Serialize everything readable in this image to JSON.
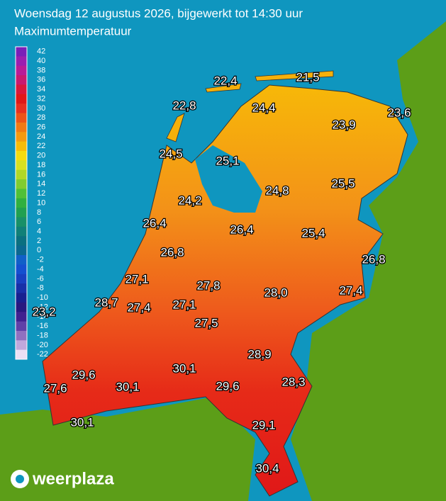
{
  "header": {
    "title": "Woensdag 12 augustus 2026, bijgewerkt tot 14:30 uur",
    "subtitle": "Maximumtemperatuur"
  },
  "scale": [
    {
      "value": 42,
      "color": "#7a1fb8"
    },
    {
      "value": 40,
      "color": "#9b1fb0"
    },
    {
      "value": 38,
      "color": "#b81c98"
    },
    {
      "value": 36,
      "color": "#c81a70"
    },
    {
      "value": 34,
      "color": "#d8183c"
    },
    {
      "value": 32,
      "color": "#e01818"
    },
    {
      "value": 30,
      "color": "#e83020"
    },
    {
      "value": 28,
      "color": "#ee5418"
    },
    {
      "value": 26,
      "color": "#f27a14"
    },
    {
      "value": 24,
      "color": "#f59a10"
    },
    {
      "value": 22,
      "color": "#f8bc08"
    },
    {
      "value": 20,
      "color": "#f5dc10"
    },
    {
      "value": 18,
      "color": "#d8e020"
    },
    {
      "value": 16,
      "color": "#b0d828"
    },
    {
      "value": 14,
      "color": "#80cc30"
    },
    {
      "value": 12,
      "color": "#50c038"
    },
    {
      "value": 10,
      "color": "#30b040"
    },
    {
      "value": 8,
      "color": "#20a050"
    },
    {
      "value": 6,
      "color": "#189068"
    },
    {
      "value": 4,
      "color": "#108078"
    },
    {
      "value": 2,
      "color": "#0a7080"
    },
    {
      "value": 0,
      "color": "#0a6890"
    },
    {
      "value": -2,
      "color": "#1060c8"
    },
    {
      "value": -4,
      "color": "#1450d0"
    },
    {
      "value": -6,
      "color": "#1840c0"
    },
    {
      "value": -8,
      "color": "#1830a8"
    },
    {
      "value": -10,
      "color": "#182090"
    },
    {
      "value": -12,
      "color": "#281880"
    },
    {
      "value": -14,
      "color": "#402090"
    },
    {
      "value": -16,
      "color": "#6040a8"
    },
    {
      "value": -18,
      "color": "#9070c0"
    },
    {
      "value": -20,
      "color": "#c0a8dc"
    },
    {
      "value": -22,
      "color": "#ece0f4"
    }
  ],
  "temperatures": [
    "22,4",
    "21,5",
    "22,8",
    "24,4",
    "23,6",
    "23,9",
    "24,5",
    "25,1",
    "24,8",
    "25,5",
    "24,2",
    "26,4",
    "26,4",
    "25,4",
    "26,8",
    "26,8",
    "27,1",
    "27,8",
    "28,0",
    "27,4",
    "23,2",
    "28,7",
    "27,4",
    "27,1",
    "27,5",
    "28,9",
    "30,1",
    "29,6",
    "29,6",
    "28,3",
    "27,6",
    "30,1",
    "30,1",
    "29,1",
    "30,4"
  ],
  "logo": "weerplaza"
}
